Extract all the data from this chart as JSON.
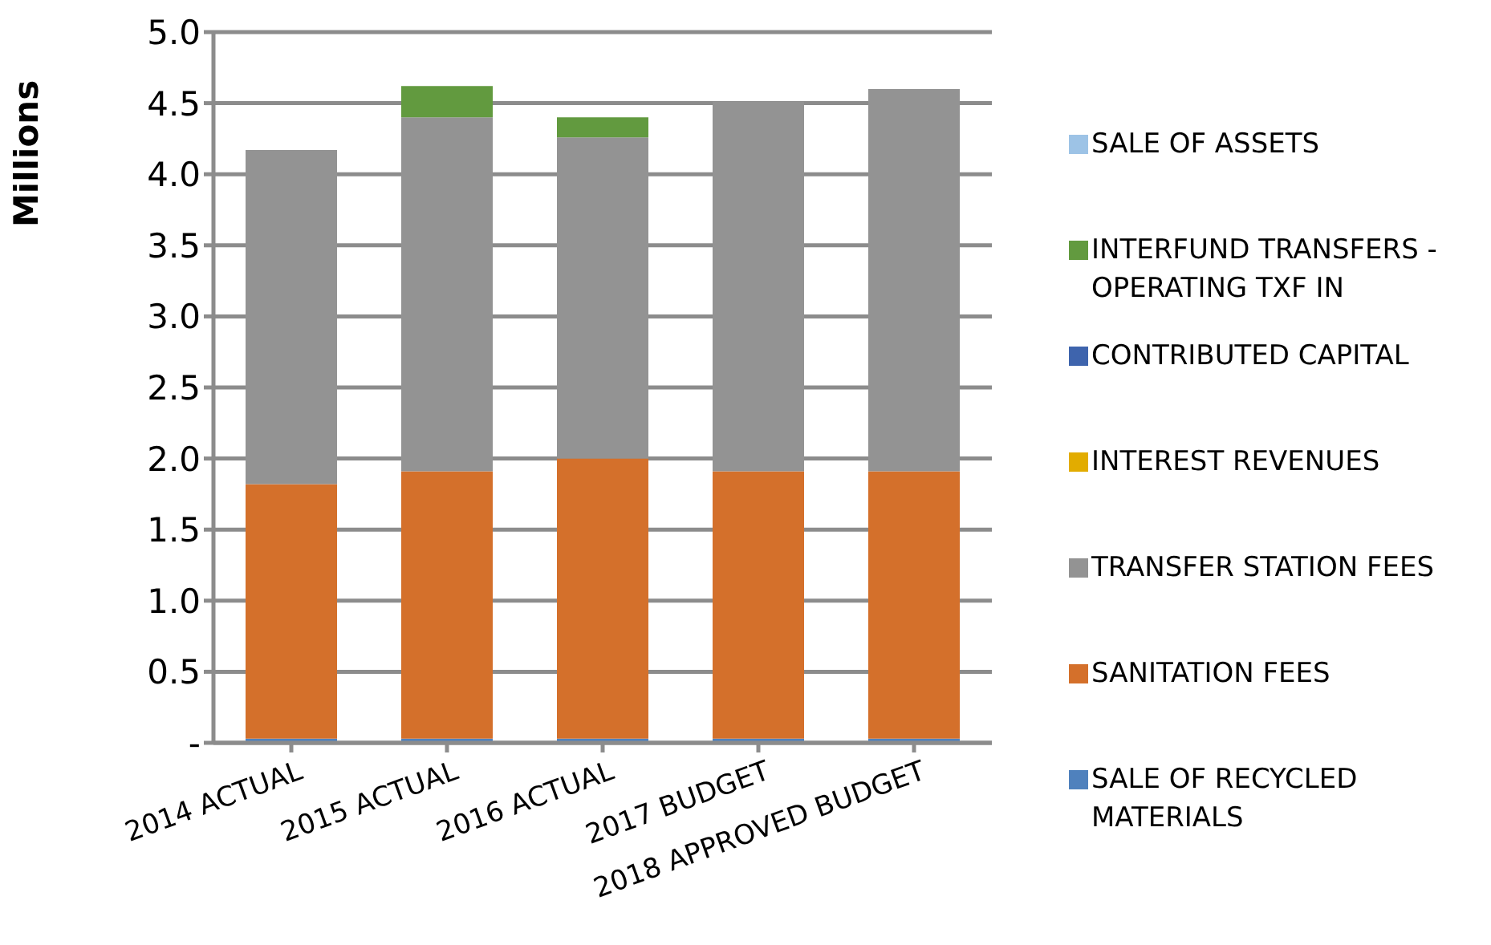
{
  "chart_data": {
    "type": "bar",
    "stacked": true,
    "ylabel": "Millions",
    "categories": [
      "2014 ACTUAL",
      "2015 ACTUAL",
      "2016 ACTUAL",
      "2017 BUDGET",
      "2018 APPROVED BUDGET"
    ],
    "series": [
      {
        "name": "SALE OF RECYCLED MATERIALS",
        "color": "#4f81bd",
        "values": [
          0.03,
          0.03,
          0.03,
          0.03,
          0.03
        ]
      },
      {
        "name": "SANITATION FEES",
        "color": "#d4702b",
        "values": [
          1.79,
          1.88,
          1.97,
          1.88,
          1.88
        ]
      },
      {
        "name": "TRANSFER STATION FEES",
        "color": "#939393",
        "values": [
          2.35,
          2.49,
          2.26,
          2.6,
          2.69
        ]
      },
      {
        "name": "INTEREST REVENUES",
        "color": "#e2ac00",
        "values": [
          0,
          0,
          0,
          0,
          0
        ]
      },
      {
        "name": "CONTRIBUTED CAPITAL",
        "color": "#3e64ad",
        "values": [
          0,
          0,
          0,
          0,
          0
        ]
      },
      {
        "name": "INTERFUND TRANSFERS - OPERATING TXF IN",
        "color": "#629a3f",
        "values": [
          0,
          0.22,
          0.14,
          0,
          0
        ]
      },
      {
        "name": "SALE OF ASSETS",
        "color": "#9dc3e6",
        "values": [
          0,
          0,
          0,
          0,
          0
        ]
      }
    ],
    "ylim": [
      0,
      5
    ],
    "yticks": [
      {
        "value": 0,
        "label": "-"
      },
      0.5,
      {
        "value": 1,
        "label": "1.0"
      },
      1.5,
      {
        "value": 2,
        "label": "2.0"
      },
      2.5,
      {
        "value": 3,
        "label": "3.0"
      },
      3.5,
      {
        "value": 4,
        "label": "4.0"
      },
      4.5,
      {
        "value": 5,
        "label": "5.0"
      }
    ],
    "grid": "y",
    "legend": "right"
  }
}
